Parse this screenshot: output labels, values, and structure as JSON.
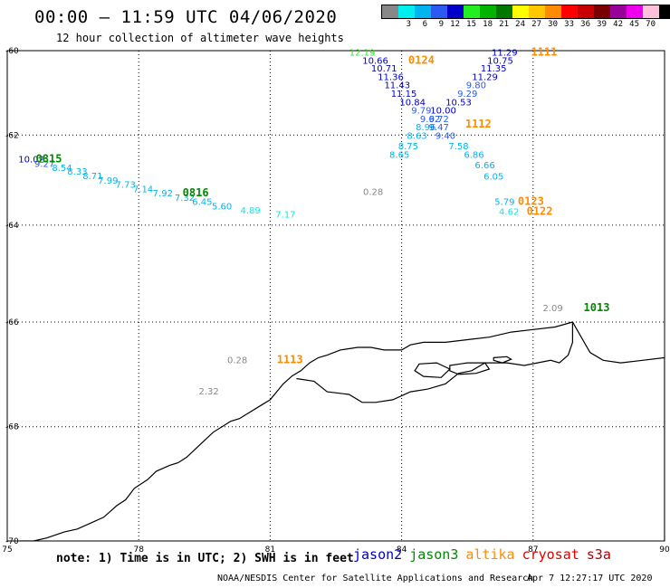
{
  "header": {
    "title": "00:00 – 11:59 UTC 04/06/2020",
    "subtitle": "12 hour collection of altimeter wave heights"
  },
  "legend": {
    "unit": "(ft)",
    "bins": [
      {
        "label": "",
        "color": "#888888"
      },
      {
        "label": "3",
        "color": "#00eeee"
      },
      {
        "label": "6",
        "color": "#00b4ee"
      },
      {
        "label": "9",
        "color": "#2a5af0"
      },
      {
        "label": "12",
        "color": "#0000c8"
      },
      {
        "label": "15",
        "color": "#22ee22"
      },
      {
        "label": "18",
        "color": "#00b400"
      },
      {
        "label": "21",
        "color": "#007800"
      },
      {
        "label": "24",
        "color": "#ffff00"
      },
      {
        "label": "27",
        "color": "#ffc800"
      },
      {
        "label": "30",
        "color": "#ff8c00"
      },
      {
        "label": "33",
        "color": "#ff0000"
      },
      {
        "label": "36",
        "color": "#c80000"
      },
      {
        "label": "39",
        "color": "#7a0000"
      },
      {
        "label": "42",
        "color": "#9a009a"
      },
      {
        "label": "45",
        "color": "#ee00ee"
      },
      {
        "label": "70",
        "color": "#ffc0dc"
      },
      {
        "label": "",
        "color": "#000000"
      }
    ]
  },
  "map": {
    "lon_range": [
      75,
      90
    ],
    "lat_range": [
      -60,
      -70
    ],
    "lon_ticks": [
      "75",
      "78",
      "81",
      "84",
      "87",
      "90"
    ],
    "lat_ticks": [
      "-60",
      "-62",
      "-64",
      "-66",
      "-68",
      "-70"
    ],
    "grid": "dotted",
    "coastline_ring": [
      [
        81.0,
        -67.5
      ],
      [
        80.8,
        -67.6
      ],
      [
        80.5,
        -67.75
      ],
      [
        80.3,
        -67.85
      ],
      [
        80.1,
        -67.9
      ],
      [
        79.9,
        -68.0
      ],
      [
        79.7,
        -68.1
      ],
      [
        79.5,
        -68.25
      ],
      [
        79.3,
        -68.4
      ],
      [
        79.1,
        -68.55
      ],
      [
        78.9,
        -68.65
      ],
      [
        78.7,
        -68.7
      ],
      [
        78.4,
        -68.8
      ],
      [
        78.2,
        -68.95
      ],
      [
        77.9,
        -69.1
      ],
      [
        77.7,
        -69.3
      ],
      [
        77.5,
        -69.4
      ],
      [
        77.2,
        -69.6
      ],
      [
        76.9,
        -69.7
      ],
      [
        76.6,
        -69.8
      ],
      [
        76.3,
        -69.85
      ],
      [
        75.9,
        -69.95
      ],
      [
        75.6,
        -70.0
      ],
      [
        75.3,
        -70.0
      ],
      [
        75.0,
        -70.05
      ],
      [
        75.0,
        -70.5
      ],
      [
        90.0,
        -70.5
      ],
      [
        90.0,
        -66.7
      ],
      [
        89.5,
        -66.75
      ],
      [
        89.0,
        -66.8
      ],
      [
        88.6,
        -66.75
      ],
      [
        88.3,
        -66.6
      ],
      [
        88.1,
        -66.3
      ],
      [
        87.9,
        -66.0
      ],
      [
        87.5,
        -66.1
      ],
      [
        87.0,
        -66.15
      ],
      [
        86.5,
        -66.2
      ],
      [
        86.0,
        -66.3
      ],
      [
        85.5,
        -66.35
      ],
      [
        85.0,
        -66.4
      ],
      [
        84.5,
        -66.4
      ],
      [
        84.2,
        -66.45
      ],
      [
        84.0,
        -66.55
      ],
      [
        83.6,
        -66.55
      ],
      [
        83.3,
        -66.5
      ],
      [
        83.0,
        -66.5
      ],
      [
        82.6,
        -66.55
      ],
      [
        82.3,
        -66.65
      ],
      [
        82.1,
        -66.7
      ],
      [
        81.9,
        -66.8
      ],
      [
        81.7,
        -66.95
      ],
      [
        81.5,
        -67.05
      ],
      [
        81.3,
        -67.2
      ],
      [
        81.0,
        -67.5
      ]
    ],
    "shelf_line": [
      [
        81.6,
        -67.1
      ],
      [
        82.0,
        -67.15
      ],
      [
        82.3,
        -67.35
      ],
      [
        82.8,
        -67.4
      ],
      [
        83.1,
        -67.55
      ],
      [
        83.4,
        -67.55
      ],
      [
        83.8,
        -67.5
      ],
      [
        84.2,
        -67.35
      ],
      [
        84.6,
        -67.3
      ],
      [
        85.0,
        -67.2
      ],
      [
        85.3,
        -67.0
      ],
      [
        85.6,
        -66.95
      ],
      [
        85.9,
        -66.8
      ],
      [
        86.4,
        -66.8
      ],
      [
        86.8,
        -66.85
      ],
      [
        87.1,
        -66.8
      ],
      [
        87.4,
        -66.75
      ],
      [
        87.6,
        -66.8
      ],
      [
        87.8,
        -66.65
      ],
      [
        87.9,
        -66.4
      ],
      [
        87.9,
        -66.0
      ]
    ],
    "islands": [
      [
        [
          85.1,
          -66.85
        ],
        [
          85.5,
          -66.8
        ],
        [
          85.9,
          -66.8
        ],
        [
          86.0,
          -66.92
        ],
        [
          85.7,
          -67.0
        ],
        [
          85.3,
          -67.02
        ],
        [
          85.1,
          -66.95
        ],
        [
          85.1,
          -66.85
        ]
      ],
      [
        [
          86.1,
          -66.7
        ],
        [
          86.4,
          -66.68
        ],
        [
          86.5,
          -66.73
        ],
        [
          86.3,
          -66.8
        ],
        [
          86.1,
          -66.75
        ],
        [
          86.1,
          -66.7
        ]
      ],
      [
        [
          84.4,
          -66.82
        ],
        [
          84.8,
          -66.8
        ],
        [
          85.1,
          -66.92
        ],
        [
          84.9,
          -67.08
        ],
        [
          84.5,
          -67.06
        ],
        [
          84.3,
          -66.95
        ],
        [
          84.4,
          -66.82
        ]
      ]
    ],
    "passes": [
      {
        "label": "0815",
        "color": "#008800",
        "lon": 75.95,
        "lat": -62.62
      },
      {
        "label": "0816",
        "color": "#008800",
        "lon": 79.3,
        "lat": -63.37
      },
      {
        "label": "0124",
        "color": "#ff8c00",
        "lon": 84.45,
        "lat": -60.32
      },
      {
        "label": "1111",
        "color": "#ff8c00",
        "lon": 87.25,
        "lat": -60.12
      },
      {
        "label": "1112",
        "color": "#ff8c00",
        "lon": 85.75,
        "lat": -61.83
      },
      {
        "label": "0123",
        "color": "#ff8c00",
        "lon": 86.95,
        "lat": -63.56
      },
      {
        "label": "0122",
        "color": "#ff8c00",
        "lon": 87.15,
        "lat": -63.78
      },
      {
        "label": "1013",
        "color": "#008800",
        "lon": 88.45,
        "lat": -65.78
      },
      {
        "label": "1113",
        "color": "#ff8c00",
        "lon": 81.45,
        "lat": -66.81
      }
    ],
    "observations": [
      {
        "v": "10.02",
        "color": "#0000c8",
        "lon": 75.55,
        "lat": -62.62
      },
      {
        "v": "9.27",
        "color": "#2a5af0",
        "lon": 75.85,
        "lat": -62.72
      },
      {
        "v": "8.54",
        "color": "#00b4ee",
        "lon": 76.25,
        "lat": -62.81
      },
      {
        "v": "8.33",
        "color": "#00b4ee",
        "lon": 76.6,
        "lat": -62.89
      },
      {
        "v": "8.71",
        "color": "#00b4ee",
        "lon": 76.95,
        "lat": -62.99
      },
      {
        "v": "7.99",
        "color": "#00b4ee",
        "lon": 77.3,
        "lat": -63.1
      },
      {
        "v": "7.73",
        "color": "#00b4ee",
        "lon": 77.7,
        "lat": -63.19
      },
      {
        "v": "7.14",
        "color": "#00b4ee",
        "lon": 78.1,
        "lat": -63.28
      },
      {
        "v": "7.92",
        "color": "#00b4ee",
        "lon": 78.55,
        "lat": -63.37
      },
      {
        "v": "7.32",
        "color": "#00b4ee",
        "lon": 79.05,
        "lat": -63.47
      },
      {
        "v": "6.45",
        "color": "#00b4ee",
        "lon": 79.45,
        "lat": -63.56
      },
      {
        "v": "5.60",
        "color": "#00b4ee",
        "lon": 79.9,
        "lat": -63.66
      },
      {
        "v": "4.89",
        "color": "#00eeee",
        "lon": 80.55,
        "lat": -63.75
      },
      {
        "v": "7.17",
        "color": "#00eeee",
        "lon": 81.35,
        "lat": -63.84
      },
      {
        "v": "12.19",
        "color": "#22ee22",
        "lon": 83.1,
        "lat": -60.12
      },
      {
        "v": "10.66",
        "color": "#0000c8",
        "lon": 83.4,
        "lat": -60.32
      },
      {
        "v": "10.71",
        "color": "#0000c8",
        "lon": 83.6,
        "lat": -60.51
      },
      {
        "v": "11.36",
        "color": "#0000c8",
        "lon": 83.75,
        "lat": -60.71
      },
      {
        "v": "11.43",
        "color": "#0000c8",
        "lon": 83.9,
        "lat": -60.91
      },
      {
        "v": "11.15",
        "color": "#0000c8",
        "lon": 84.05,
        "lat": -61.11
      },
      {
        "v": "10.84",
        "color": "#0000c8",
        "lon": 84.25,
        "lat": -61.31
      },
      {
        "v": "9.79",
        "color": "#2a5af0",
        "lon": 84.45,
        "lat": -61.5
      },
      {
        "v": "9.62",
        "color": "#2a5af0",
        "lon": 84.65,
        "lat": -61.7
      },
      {
        "v": "8.96",
        "color": "#00b4ee",
        "lon": 84.55,
        "lat": -61.89
      },
      {
        "v": "8.63",
        "color": "#00b4ee",
        "lon": 84.35,
        "lat": -62.09
      },
      {
        "v": "8.75",
        "color": "#00b4ee",
        "lon": 84.15,
        "lat": -62.32
      },
      {
        "v": "8.65",
        "color": "#00b4ee",
        "lon": 83.95,
        "lat": -62.52
      },
      {
        "v": "11.29",
        "color": "#0000c8",
        "lon": 86.35,
        "lat": -60.12
      },
      {
        "v": "10.75",
        "color": "#0000c8",
        "lon": 86.25,
        "lat": -60.32
      },
      {
        "v": "11.35",
        "color": "#0000c8",
        "lon": 86.1,
        "lat": -60.51
      },
      {
        "v": "11.29",
        "color": "#0000c8",
        "lon": 85.9,
        "lat": -60.71
      },
      {
        "v": "9.80",
        "color": "#2a5af0",
        "lon": 85.7,
        "lat": -60.91
      },
      {
        "v": "9.29",
        "color": "#2a5af0",
        "lon": 85.5,
        "lat": -61.11
      },
      {
        "v": "10.53",
        "color": "#0000c8",
        "lon": 85.3,
        "lat": -61.31
      },
      {
        "v": "10.00",
        "color": "#0000c8",
        "lon": 84.95,
        "lat": -61.5
      },
      {
        "v": "9.72",
        "color": "#2a5af0",
        "lon": 84.85,
        "lat": -61.7
      },
      {
        "v": "9.47",
        "color": "#2a5af0",
        "lon": 84.85,
        "lat": -61.89
      },
      {
        "v": "9.40",
        "color": "#2a5af0",
        "lon": 85.0,
        "lat": -62.09
      },
      {
        "v": "7.58",
        "color": "#00b4ee",
        "lon": 85.3,
        "lat": -62.32
      },
      {
        "v": "6.86",
        "color": "#00b4ee",
        "lon": 85.65,
        "lat": -62.52
      },
      {
        "v": "6.66",
        "color": "#00b4ee",
        "lon": 85.9,
        "lat": -62.75
      },
      {
        "v": "6.05",
        "color": "#00b4ee",
        "lon": 86.1,
        "lat": -63.0
      },
      {
        "v": "5.79",
        "color": "#00b4ee",
        "lon": 86.35,
        "lat": -63.56
      },
      {
        "v": "4.62",
        "color": "#00eeee",
        "lon": 86.45,
        "lat": -63.78
      },
      {
        "v": "0.28",
        "color": "#888888",
        "lon": 83.35,
        "lat": -63.34
      },
      {
        "v": "2.09",
        "color": "#888888",
        "lon": 87.45,
        "lat": -65.78
      },
      {
        "v": "0.28",
        "color": "#888888",
        "lon": 80.25,
        "lat": -66.81
      },
      {
        "v": "2.32",
        "color": "#888888",
        "lon": 79.6,
        "lat": -67.4
      }
    ]
  },
  "footer": {
    "note": "note: 1) Time is in UTC; 2) SWH is in feet",
    "credit": "NOAA/NESDIS Center for Satellite Applications and Research",
    "generated": "Apr  7 12:27:17 UTC 2020",
    "satellites": [
      {
        "name": "jason2",
        "color": "#0000c8"
      },
      {
        "name": "jason3",
        "color": "#008800"
      },
      {
        "name": "altika",
        "color": "#ff8c00"
      },
      {
        "name": "cryosat",
        "color": "#e00000"
      },
      {
        "name": "s3a",
        "color": "#b40000"
      }
    ]
  }
}
